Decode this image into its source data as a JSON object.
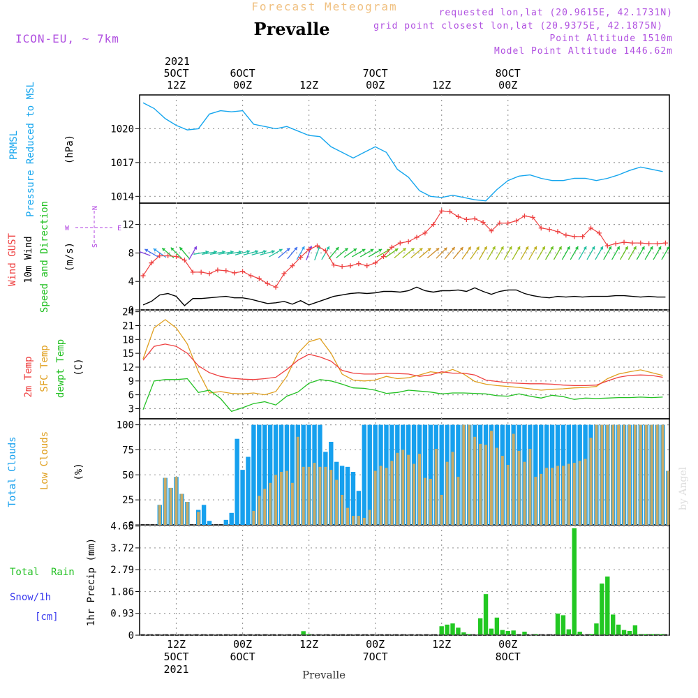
{
  "header": {
    "product_title": "Forecast Meteogram",
    "location": "Prevalle",
    "model": "ICON-EU, ~ 7km",
    "requested": "requested lon,lat (20.9615E, 42.1731N)",
    "grid_point": "grid point closest lon,lat (20.9375E, 42.1875N)",
    "point_altitude": "Point Altitude 1510m",
    "model_altitude": "Model Point Altitude 1446.62m",
    "bottom_label": "Prevalle",
    "watermark": "by Angel"
  },
  "colors": {
    "pressure": "#16a6ee",
    "gust": "#ee4040",
    "wind": "#000000",
    "temp2m": "#ee4040",
    "sfc_temp": "#e0a020",
    "dewpt": "#22c022",
    "total_clouds": "#16a0ee",
    "low_clouds": "#c8aa66",
    "rain": "#22c822",
    "snow": "#3a3aee",
    "wind_dir_label": "#b040e0",
    "header_purple": "#b050e0",
    "title_orange": "#f0c080"
  },
  "time_axis": {
    "top_year": "2021",
    "top_labels": [
      {
        "line1": "5OCT",
        "line2": "12Z"
      },
      {
        "line1": "6OCT",
        "line2": "00Z"
      },
      {
        "line1": "",
        "line2": "12Z"
      },
      {
        "line1": "7OCT",
        "line2": "00Z"
      },
      {
        "line1": "",
        "line2": "12Z"
      },
      {
        "line1": "8OCT",
        "line2": "00Z"
      }
    ],
    "bottom_labels": [
      {
        "line1": "12Z",
        "line2": "5OCT",
        "line3": "2021"
      },
      {
        "line1": "00Z",
        "line2": "6OCT",
        "line3": ""
      },
      {
        "line1": "12Z",
        "line2": "",
        "line3": ""
      },
      {
        "line1": "00Z",
        "line2": "7OCT",
        "line3": ""
      },
      {
        "line1": "12Z",
        "line2": "",
        "line3": ""
      },
      {
        "line1": "00Z",
        "line2": "8OCT",
        "line3": ""
      }
    ]
  },
  "chart_data": [
    {
      "type": "line",
      "id": "pressure",
      "label_line1": "PRMSL",
      "label_line2": "Pressure Reduced to MSL",
      "unit": "(hPa)",
      "x_hours": [
        0,
        2,
        4,
        6,
        8,
        10,
        12,
        14,
        16,
        18,
        20,
        22,
        24,
        26,
        28,
        30,
        32,
        34,
        36,
        38,
        40,
        42,
        44,
        46,
        48,
        50,
        52,
        54,
        56,
        58,
        60,
        62,
        64,
        66,
        68,
        70,
        72,
        74,
        76,
        78,
        80,
        82,
        84,
        86,
        88,
        90,
        92,
        94
      ],
      "values": [
        1022.3,
        1021.8,
        1020.9,
        1020.3,
        1019.9,
        1020.0,
        1021.3,
        1021.6,
        1021.5,
        1021.6,
        1020.4,
        1020.2,
        1020.0,
        1020.2,
        1019.8,
        1019.4,
        1019.3,
        1018.4,
        1017.9,
        1017.4,
        1017.9,
        1018.4,
        1017.9,
        1016.4,
        1015.7,
        1014.5,
        1014.0,
        1013.9,
        1014.1,
        1013.9,
        1013.7,
        1013.6,
        1014.6,
        1015.4,
        1015.8,
        1015.9,
        1015.6,
        1015.4,
        1015.4,
        1015.6,
        1015.6,
        1015.4,
        1015.6,
        1015.9,
        1016.3,
        1016.6,
        1016.4,
        1016.2
      ],
      "yticks": [
        1014,
        1017,
        1020
      ],
      "ylim": [
        1013.4,
        1023.0
      ]
    },
    {
      "type": "line",
      "id": "wind",
      "label_gust": "Wind GUST",
      "label_wind": "10m Wind",
      "label_dir": "Speed and Direction",
      "unit": "(m/s)",
      "compass": {
        "n": "N",
        "s": "S",
        "w": "W",
        "e": "E"
      },
      "x_hours": [
        0,
        1.5,
        3,
        4.5,
        6,
        7.5,
        9,
        10.5,
        12,
        13.5,
        15,
        16.5,
        18,
        19.5,
        21,
        22.5,
        24,
        25.5,
        27,
        28.5,
        30,
        31.5,
        33,
        34.5,
        36,
        37.5,
        39,
        40.5,
        42,
        43.5,
        45,
        46.5,
        48,
        49.5,
        51,
        52.5,
        54,
        55.5,
        57,
        58.5,
        60,
        61.5,
        63,
        64.5,
        66,
        67.5,
        69,
        70.5,
        72,
        73.5,
        75,
        76.5,
        78,
        79.5,
        81,
        82.5,
        84,
        85.5,
        87,
        88.5,
        90,
        91.5,
        93,
        94.5
      ],
      "gust": [
        4.8,
        6.6,
        7.6,
        7.6,
        7.5,
        7.0,
        5.3,
        5.3,
        5.1,
        5.6,
        5.5,
        5.2,
        5.4,
        4.8,
        4.4,
        3.7,
        3.2,
        5.1,
        6.2,
        7.4,
        8.5,
        9.0,
        8.3,
        6.3,
        6.1,
        6.2,
        6.5,
        6.2,
        6.6,
        7.5,
        8.8,
        9.4,
        9.6,
        10.2,
        10.8,
        12.0,
        13.9,
        13.8,
        13.1,
        12.7,
        12.8,
        12.3,
        11.1,
        12.2,
        12.2,
        12.5,
        13.2,
        13.0,
        11.5,
        11.3,
        11.0,
        10.5,
        10.3,
        10.3,
        11.5,
        10.8,
        9.0,
        9.3,
        9.5,
        9.4,
        9.4,
        9.3,
        9.3,
        9.4
      ],
      "wind": [
        0.7,
        1.2,
        2.1,
        2.3,
        1.9,
        0.6,
        1.6,
        1.6,
        1.7,
        1.8,
        1.9,
        1.7,
        1.7,
        1.5,
        1.2,
        0.9,
        1.0,
        1.2,
        0.8,
        1.3,
        0.7,
        1.1,
        1.5,
        1.9,
        2.1,
        2.3,
        2.4,
        2.3,
        2.4,
        2.6,
        2.6,
        2.5,
        2.7,
        3.2,
        2.7,
        2.5,
        2.7,
        2.7,
        2.8,
        2.6,
        3.1,
        2.6,
        2.2,
        2.6,
        2.8,
        2.8,
        2.3,
        2.0,
        1.8,
        1.7,
        1.9,
        1.8,
        1.9,
        1.8,
        1.9,
        1.9,
        1.9,
        2.0,
        2.0,
        1.9,
        1.8,
        1.9,
        1.8,
        1.8
      ],
      "arrow_angle_deg": [
        200,
        210,
        215,
        220,
        225,
        230,
        300,
        350,
        350,
        350,
        350,
        350,
        345,
        345,
        345,
        345,
        330,
        320,
        310,
        300,
        290,
        290,
        300,
        310,
        320,
        325,
        330,
        330,
        330,
        330,
        325,
        320,
        320,
        320,
        320,
        320,
        315,
        310,
        310,
        305,
        305,
        300,
        300,
        300,
        300,
        300,
        300,
        300,
        300,
        300,
        300,
        300,
        300,
        300,
        300,
        300,
        300,
        300,
        300,
        300,
        300,
        300,
        300,
        300
      ],
      "arrow_color": [
        "#8040e0",
        "#4070ee",
        "#30a0ee",
        "#22c040",
        "#22c040",
        "#22c040",
        "#8040e0",
        "#22c0a0",
        "#22c0a0",
        "#22c0a0",
        "#22c0a0",
        "#22c0a0",
        "#22c0a0",
        "#22c0a0",
        "#22c0a0",
        "#22c0a0",
        "#22c0a0",
        "#4070ee",
        "#4070ee",
        "#30a0ee",
        "#8040e0",
        "#22c0a0",
        "#22c0a0",
        "#22c040",
        "#22c040",
        "#22c040",
        "#22c040",
        "#22c040",
        "#22c040",
        "#66c020",
        "#66c020",
        "#a0c020",
        "#a0c020",
        "#c0b020",
        "#d0a020",
        "#d09030",
        "#d09030",
        "#d09030",
        "#d09030",
        "#d0a020",
        "#c0b020",
        "#c0b020",
        "#a0c020",
        "#a0c020",
        "#a0c020",
        "#a0c020",
        "#c0b020",
        "#c0b020",
        "#a0c020",
        "#66c020",
        "#66c020",
        "#22c040",
        "#22c040",
        "#22c0a0",
        "#22c0a0",
        "#22c0a0",
        "#22c040",
        "#22c040",
        "#66c020",
        "#66c020",
        "#22c040",
        "#22c040",
        "#22c040",
        "#22c040"
      ],
      "yticks": [
        0,
        4,
        8,
        12
      ],
      "ylim": [
        0,
        15
      ]
    },
    {
      "type": "line",
      "id": "temperature",
      "label_2m": "2m Temp",
      "label_sfc": "SFC Temp",
      "label_dewpt": "dewpt Temp",
      "unit": "(C)",
      "x_hours": [
        0,
        2,
        4,
        6,
        8,
        10,
        12,
        14,
        16,
        18,
        20,
        22,
        24,
        26,
        28,
        30,
        32,
        34,
        36,
        38,
        40,
        42,
        44,
        46,
        48,
        50,
        52,
        54,
        56,
        58,
        60,
        62,
        64,
        66,
        68,
        70,
        72,
        74,
        76,
        78,
        80,
        82,
        84,
        86,
        88,
        90,
        92,
        94
      ],
      "t2m": [
        13.5,
        16.5,
        17.0,
        16.5,
        15.0,
        12.3,
        10.8,
        10.0,
        9.6,
        9.4,
        9.3,
        9.5,
        9.8,
        11.5,
        13.5,
        14.8,
        14.2,
        13.3,
        11.3,
        10.7,
        10.5,
        10.5,
        10.7,
        10.6,
        10.5,
        10.0,
        10.3,
        11.0,
        10.7,
        10.7,
        10.3,
        9.2,
        8.9,
        8.6,
        8.5,
        8.4,
        8.4,
        8.3,
        8.1,
        8.0,
        8.0,
        8.1,
        9.0,
        9.8,
        10.2,
        10.3,
        10.2,
        9.8
      ],
      "tsfc": [
        13.8,
        20.5,
        22.3,
        20.5,
        17.0,
        11.0,
        6.4,
        6.7,
        6.3,
        6.2,
        6.4,
        6.0,
        6.7,
        10.0,
        15.0,
        17.5,
        18.2,
        15.0,
        10.5,
        9.2,
        9.0,
        9.2,
        10.0,
        9.5,
        9.7,
        10.3,
        11.0,
        10.7,
        11.5,
        10.5,
        8.9,
        8.3,
        8.0,
        7.8,
        7.6,
        7.3,
        7.0,
        7.2,
        7.3,
        7.5,
        7.6,
        7.8,
        9.5,
        10.5,
        11.0,
        11.4,
        10.8,
        10.2
      ],
      "tdew": [
        2.8,
        9.0,
        9.3,
        9.3,
        9.5,
        6.5,
        7.0,
        5.2,
        2.4,
        3.2,
        4.1,
        4.5,
        3.8,
        5.7,
        6.6,
        8.5,
        9.3,
        9.0,
        8.3,
        7.5,
        7.4,
        7.0,
        6.3,
        6.5,
        7.0,
        6.8,
        6.6,
        6.2,
        6.4,
        6.4,
        6.3,
        6.2,
        5.8,
        5.7,
        6.2,
        5.7,
        5.3,
        5.9,
        5.6,
        5.0,
        5.3,
        5.2,
        5.3,
        5.4,
        5.4,
        5.5,
        5.4,
        5.5
      ],
      "yticks": [
        3,
        6,
        9,
        12,
        15,
        18,
        21,
        24
      ],
      "ylim": [
        0.8,
        24.4
      ]
    },
    {
      "type": "bar",
      "id": "clouds",
      "label_total": "Total Clouds",
      "label_low": "Low Clouds",
      "unit": "(%)",
      "x_hours": [
        0,
        1,
        2,
        3,
        4,
        5,
        6,
        7,
        8,
        9,
        10,
        11,
        12,
        13,
        14,
        15,
        16,
        17,
        18,
        19,
        20,
        21,
        22,
        23,
        24,
        25,
        26,
        27,
        28,
        29,
        30,
        31,
        32,
        33,
        34,
        35,
        36,
        37,
        38,
        39,
        40,
        41,
        42,
        43,
        44,
        45,
        46,
        47,
        48,
        49,
        50,
        51,
        52,
        53,
        54,
        55,
        56,
        57,
        58,
        59,
        60,
        61,
        62,
        63,
        64,
        65,
        66,
        67,
        68,
        69,
        70,
        71,
        72,
        73,
        74,
        75,
        76,
        77,
        78,
        79,
        80,
        81,
        82,
        83,
        84,
        85,
        86,
        87,
        88,
        89,
        90,
        91,
        92,
        93,
        94,
        95
      ],
      "total": [
        0,
        0,
        0,
        20,
        47,
        37,
        48,
        31,
        23,
        0,
        15,
        20,
        4,
        0,
        0,
        5,
        12,
        86,
        55,
        68,
        100,
        100,
        100,
        100,
        100,
        100,
        100,
        100,
        100,
        100,
        100,
        100,
        100,
        73,
        83,
        63,
        59,
        58,
        53,
        34,
        100,
        100,
        100,
        100,
        100,
        100,
        100,
        100,
        100,
        100,
        100,
        100,
        100,
        100,
        100,
        100,
        100,
        100,
        100,
        100,
        100,
        100,
        100,
        100,
        100,
        100,
        100,
        100,
        100,
        100,
        100,
        100,
        100,
        100,
        100,
        100,
        100,
        100,
        100,
        100,
        100,
        100,
        100,
        100,
        100,
        100,
        100,
        100,
        100,
        100,
        100,
        100,
        100,
        100,
        100,
        54
      ],
      "low": [
        0,
        0,
        0,
        20,
        47,
        37,
        48,
        31,
        23,
        0,
        13,
        0,
        0,
        0,
        0,
        0,
        0,
        0,
        0,
        0,
        14,
        29,
        36,
        42,
        50,
        53,
        54,
        42,
        88,
        58,
        58,
        62,
        58,
        58,
        55,
        45,
        30,
        17,
        9,
        9,
        7,
        15,
        54,
        59,
        57,
        64,
        72,
        75,
        70,
        61,
        71,
        47,
        46,
        76,
        30,
        63,
        73,
        48,
        100,
        100,
        88,
        81,
        80,
        94,
        77,
        69,
        60,
        91,
        74,
        63,
        76,
        48,
        51,
        57,
        57,
        59,
        59,
        61,
        62,
        64,
        66,
        87,
        100,
        100,
        100,
        100,
        100,
        100,
        100,
        100,
        100,
        100,
        100,
        100,
        100,
        54
      ],
      "yticks": [
        0,
        25,
        50,
        75,
        100
      ],
      "ylim": [
        0,
        106
      ]
    },
    {
      "type": "bar",
      "id": "precip",
      "label_rain": "Total  Rain",
      "label_snow": "Snow/1h",
      "label_cm": "[cm]",
      "unit": "1hr Precip (mm)",
      "x_hours": [
        29,
        30,
        54,
        55,
        56,
        57,
        58,
        59,
        61,
        62,
        63,
        64,
        65,
        66,
        67,
        69,
        71,
        75,
        76,
        77,
        78,
        79,
        81,
        82,
        83,
        84,
        85,
        86,
        87,
        88,
        89,
        90,
        91,
        92,
        93,
        94
      ],
      "values": [
        0.17,
        0.05,
        0.38,
        0.45,
        0.5,
        0.32,
        0.12,
        0.05,
        0.72,
        1.75,
        0.28,
        0.75,
        0.22,
        0.18,
        0.2,
        0.15,
        0.05,
        0.92,
        0.85,
        0.25,
        4.56,
        0.15,
        0.05,
        0.5,
        2.2,
        2.5,
        0.88,
        0.45,
        0.22,
        0.18,
        0.42,
        0.05,
        0.05,
        0.05,
        0.05,
        0.05
      ],
      "yticks": [
        0,
        0.93,
        1.86,
        2.79,
        3.72,
        4.65
      ],
      "ylim": [
        0,
        4.7
      ]
    }
  ]
}
